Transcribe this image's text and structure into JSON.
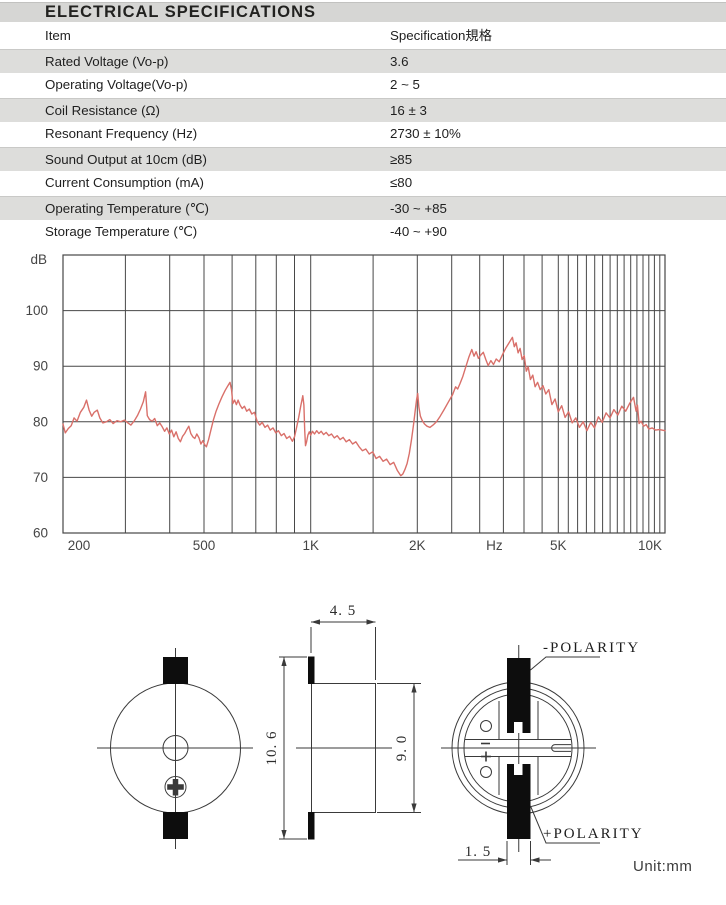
{
  "header": {
    "title": "ELECTRICAL SPECIFICATIONS"
  },
  "spec_table": {
    "columns": {
      "item": "Item",
      "spec": "Specification規格"
    },
    "rows": [
      {
        "item": "Rated Voltage (Vo-p)",
        "spec": "3.6"
      },
      {
        "item": "Operating Voltage(Vo-p)",
        "spec": "2 ~ 5"
      },
      {
        "item": "Coil Resistance (Ω)",
        "spec": "16 ± 3"
      },
      {
        "item": "Resonant Frequency (Hz)",
        "spec": "2730 ± 10%"
      },
      {
        "item": "Sound Output at 10cm (dB)",
        "spec": "≥85"
      },
      {
        "item": "Current Consumption (mA)",
        "spec": "≤80"
      },
      {
        "item": "Operating Temperature (℃)",
        "spec": "-30 ~ +85"
      },
      {
        "item": "Storage Temperature (℃)",
        "spec": "-40 ~ +90"
      }
    ]
  },
  "colors": {
    "titlebar_bg": "#d6d6d4",
    "row_alt_bg": "#dddddb",
    "grid": "#474747",
    "curve": "#d9706a",
    "axis_text": "#454545",
    "drawing_line": "#3a3a3a",
    "tab_fill": "#0d0d0d"
  },
  "chart_data": {
    "type": "line",
    "title": "",
    "x_scale": "log",
    "xlim": [
      200,
      10000
    ],
    "ylim": [
      60,
      110
    ],
    "grid": true,
    "y_unit_label": "dB",
    "x_unit_label": "Hz",
    "y_tick_labels": [
      100,
      90,
      80,
      70,
      60
    ],
    "y_gridlines": [
      70,
      80,
      90,
      100
    ],
    "x_tick_labels": [
      {
        "f": 200,
        "label": "200"
      },
      {
        "f": 500,
        "label": "500"
      },
      {
        "f": 1000,
        "label": "1K"
      },
      {
        "f": 2000,
        "label": "2K"
      },
      {
        "f": 3300,
        "label": "Hz"
      },
      {
        "f": 5000,
        "label": "5K"
      },
      {
        "f": 10000,
        "label": "10K"
      }
    ],
    "x_gridlines": [
      300,
      400,
      500,
      600,
      700,
      800,
      900,
      1000,
      1500,
      2000,
      2500,
      3000,
      3500,
      4000,
      4500,
      5000,
      5333,
      5667,
      6000,
      6333,
      6667,
      7000,
      7333,
      7667,
      8000,
      8333,
      8667,
      9000,
      9333,
      9667
    ],
    "series": [
      {
        "name": "SPL (dB)",
        "color": "#d9706a",
        "points": [
          [
            200,
            79.6
          ],
          [
            203,
            78.0
          ],
          [
            207,
            78.8
          ],
          [
            211,
            79.3
          ],
          [
            215,
            80.7
          ],
          [
            219,
            80.1
          ],
          [
            224,
            81.7
          ],
          [
            229,
            82.6
          ],
          [
            233,
            83.9
          ],
          [
            237,
            82.1
          ],
          [
            241,
            81.0
          ],
          [
            245,
            81.7
          ],
          [
            250,
            82.1
          ],
          [
            254,
            80.7
          ],
          [
            259,
            79.8
          ],
          [
            265,
            80.0
          ],
          [
            271,
            80.4
          ],
          [
            277,
            79.7
          ],
          [
            284,
            80.2
          ],
          [
            291,
            80.0
          ],
          [
            298,
            80.3
          ],
          [
            305,
            79.8
          ],
          [
            311,
            79.4
          ],
          [
            318,
            80.2
          ],
          [
            325,
            81.2
          ],
          [
            331,
            82.3
          ],
          [
            337,
            83.6
          ],
          [
            342,
            85.4
          ],
          [
            346,
            81.1
          ],
          [
            351,
            80.4
          ],
          [
            357,
            80.1
          ],
          [
            363,
            80.6
          ],
          [
            369,
            79.3
          ],
          [
            375,
            79.8
          ],
          [
            381,
            79.1
          ],
          [
            387,
            78.3
          ],
          [
            393,
            78.9
          ],
          [
            399,
            77.8
          ],
          [
            405,
            78.5
          ],
          [
            411,
            77.3
          ],
          [
            417,
            78.2
          ],
          [
            423,
            77.0
          ],
          [
            429,
            76.4
          ],
          [
            435,
            77.4
          ],
          [
            441,
            77.9
          ],
          [
            447,
            78.6
          ],
          [
            453,
            79.2
          ],
          [
            459,
            77.9
          ],
          [
            465,
            77.3
          ],
          [
            471,
            77.0
          ],
          [
            477,
            77.8
          ],
          [
            484,
            77.1
          ],
          [
            490,
            76.0
          ],
          [
            496,
            76.6
          ],
          [
            502,
            75.9
          ],
          [
            508,
            75.5
          ],
          [
            515,
            76.8
          ],
          [
            523,
            78.5
          ],
          [
            532,
            80.4
          ],
          [
            541,
            81.9
          ],
          [
            551,
            83.2
          ],
          [
            562,
            84.5
          ],
          [
            573,
            85.6
          ],
          [
            583,
            86.4
          ],
          [
            592,
            87.1
          ],
          [
            598,
            85.8
          ],
          [
            603,
            83.3
          ],
          [
            610,
            83.9
          ],
          [
            617,
            83.1
          ],
          [
            624,
            83.9
          ],
          [
            632,
            83.0
          ],
          [
            641,
            82.4
          ],
          [
            650,
            82.8
          ],
          [
            660,
            81.9
          ],
          [
            671,
            82.3
          ],
          [
            682,
            81.4
          ],
          [
            694,
            81.7
          ],
          [
            706,
            80.1
          ],
          [
            718,
            79.4
          ],
          [
            730,
            79.9
          ],
          [
            743,
            79.0
          ],
          [
            756,
            79.4
          ],
          [
            769,
            78.5
          ],
          [
            783,
            78.9
          ],
          [
            797,
            78.0
          ],
          [
            811,
            78.4
          ],
          [
            826,
            77.5
          ],
          [
            841,
            77.9
          ],
          [
            856,
            77.0
          ],
          [
            872,
            77.4
          ],
          [
            888,
            76.5
          ],
          [
            900,
            77.3
          ],
          [
            912,
            78.9
          ],
          [
            925,
            80.8
          ],
          [
            938,
            82.9
          ],
          [
            950,
            84.7
          ],
          [
            957,
            83.0
          ],
          [
            962,
            78.5
          ],
          [
            967,
            75.7
          ],
          [
            974,
            76.4
          ],
          [
            982,
            77.6
          ],
          [
            991,
            78.2
          ],
          [
            1000,
            77.6
          ],
          [
            1012,
            78.3
          ],
          [
            1025,
            77.8
          ],
          [
            1040,
            78.4
          ],
          [
            1055,
            77.9
          ],
          [
            1071,
            78.3
          ],
          [
            1088,
            77.7
          ],
          [
            1106,
            78.1
          ],
          [
            1125,
            77.5
          ],
          [
            1145,
            77.8
          ],
          [
            1166,
            77.1
          ],
          [
            1188,
            77.5
          ],
          [
            1211,
            76.8
          ],
          [
            1235,
            77.2
          ],
          [
            1260,
            76.4
          ],
          [
            1286,
            76.8
          ],
          [
            1313,
            76.0
          ],
          [
            1341,
            76.4
          ],
          [
            1370,
            75.5
          ],
          [
            1400,
            74.8
          ],
          [
            1431,
            75.1
          ],
          [
            1463,
            74.2
          ],
          [
            1496,
            74.6
          ],
          [
            1530,
            73.4
          ],
          [
            1565,
            73.8
          ],
          [
            1601,
            72.9
          ],
          [
            1638,
            73.3
          ],
          [
            1676,
            72.3
          ],
          [
            1715,
            72.7
          ],
          [
            1755,
            71.3
          ],
          [
            1796,
            70.3
          ],
          [
            1820,
            70.6
          ],
          [
            1845,
            71.4
          ],
          [
            1871,
            72.5
          ],
          [
            1898,
            74.3
          ],
          [
            1926,
            76.8
          ],
          [
            1950,
            79.3
          ],
          [
            1972,
            82.0
          ],
          [
            1990,
            84.0
          ],
          [
            2005,
            85.1
          ],
          [
            2020,
            82.6
          ],
          [
            2040,
            81.0
          ],
          [
            2065,
            80.2
          ],
          [
            2095,
            79.6
          ],
          [
            2130,
            79.2
          ],
          [
            2170,
            79.0
          ],
          [
            2215,
            79.4
          ],
          [
            2265,
            80.0
          ],
          [
            2320,
            81.0
          ],
          [
            2380,
            82.2
          ],
          [
            2445,
            83.5
          ],
          [
            2515,
            84.9
          ],
          [
            2565,
            86.3
          ],
          [
            2600,
            85.9
          ],
          [
            2640,
            86.9
          ],
          [
            2690,
            88.2
          ],
          [
            2740,
            89.9
          ],
          [
            2795,
            91.6
          ],
          [
            2850,
            93.0
          ],
          [
            2890,
            91.8
          ],
          [
            2930,
            92.6
          ],
          [
            2975,
            91.4
          ],
          [
            3020,
            92.0
          ],
          [
            3070,
            92.5
          ],
          [
            3120,
            91.2
          ],
          [
            3170,
            90.1
          ],
          [
            3225,
            91.0
          ],
          [
            3280,
            90.3
          ],
          [
            3340,
            91.3
          ],
          [
            3405,
            90.8
          ],
          [
            3475,
            92.0
          ],
          [
            3550,
            93.2
          ],
          [
            3630,
            94.2
          ],
          [
            3710,
            95.2
          ],
          [
            3755,
            93.5
          ],
          [
            3800,
            94.2
          ],
          [
            3850,
            92.4
          ],
          [
            3900,
            93.2
          ],
          [
            3950,
            91.2
          ],
          [
            4005,
            91.9
          ],
          [
            4060,
            89.1
          ],
          [
            4110,
            89.9
          ],
          [
            4170,
            87.6
          ],
          [
            4235,
            88.4
          ],
          [
            4300,
            86.3
          ],
          [
            4370,
            87.1
          ],
          [
            4445,
            85.8
          ],
          [
            4525,
            86.5
          ],
          [
            4610,
            85.0
          ],
          [
            4700,
            85.8
          ],
          [
            4795,
            83.1
          ],
          [
            4895,
            84.1
          ],
          [
            5000,
            81.8
          ],
          [
            5110,
            82.9
          ],
          [
            5225,
            80.8
          ],
          [
            5345,
            81.8
          ],
          [
            5470,
            79.8
          ],
          [
            5600,
            80.7
          ],
          [
            5735,
            79.0
          ],
          [
            5875,
            80.0
          ],
          [
            6020,
            78.4
          ],
          [
            6170,
            79.9
          ],
          [
            6325,
            78.9
          ],
          [
            6485,
            80.9
          ],
          [
            6650,
            79.9
          ],
          [
            6820,
            81.6
          ],
          [
            6995,
            80.7
          ],
          [
            7175,
            82.2
          ],
          [
            7360,
            81.2
          ],
          [
            7550,
            82.8
          ],
          [
            7745,
            81.9
          ],
          [
            7945,
            83.3
          ],
          [
            8150,
            84.4
          ],
          [
            8290,
            81.9
          ],
          [
            8360,
            83.0
          ],
          [
            8450,
            79.7
          ],
          [
            8560,
            80.1
          ],
          [
            8700,
            79.2
          ],
          [
            8850,
            79.5
          ],
          [
            9000,
            78.7
          ],
          [
            9200,
            78.9
          ],
          [
            9400,
            78.5
          ],
          [
            9650,
            78.6
          ],
          [
            10000,
            78.4
          ]
        ]
      }
    ]
  },
  "drawing": {
    "dim_width": "4. 5",
    "dim_total_height": "10. 6",
    "dim_body_height": "9. 0",
    "dim_tab": "1. 5",
    "polarity_neg": "-POLARITY",
    "polarity_pos": "+POLARITY",
    "unit_note": "Unit:mm"
  }
}
